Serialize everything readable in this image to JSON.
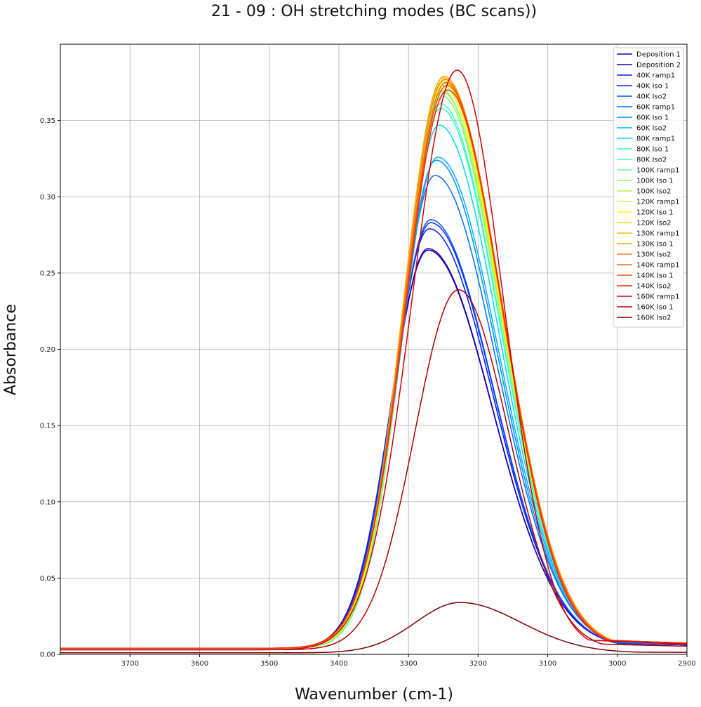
{
  "chart_data": {
    "type": "line",
    "title": "21 - 09 : OH stretching modes (BC scans))",
    "xlabel": "Wavenumber (cm-1)",
    "ylabel": "Absorbance",
    "xlim": [
      3800,
      2900
    ],
    "ylim": [
      0,
      0.4
    ],
    "x_reversed": true,
    "grid": true,
    "legend_position": "top-right",
    "x_ticks": [
      3700,
      3600,
      3500,
      3400,
      3300,
      3200,
      3100,
      3000,
      2900
    ],
    "y_ticks": [
      0.0,
      0.05,
      0.1,
      0.15,
      0.2,
      0.25,
      0.3,
      0.35
    ],
    "series": [
      {
        "name": "Deposition 1",
        "color": "#1a00a8",
        "peak_x": 3272,
        "peak": 0.261,
        "left_scale": 1.0,
        "right_scale": 1.0,
        "shoulder": 0.0,
        "baseline": 0.004
      },
      {
        "name": "Deposition 2",
        "color": "#1800b4",
        "peak_x": 3272,
        "peak": 0.262,
        "left_scale": 1.0,
        "right_scale": 1.0,
        "shoulder": 0.0,
        "baseline": 0.004
      },
      {
        "name": "40K ramp1",
        "color": "#0019ff",
        "peak_x": 3270,
        "peak": 0.275,
        "left_scale": 0.99,
        "right_scale": 1.0,
        "shoulder": 0.0,
        "baseline": 0.004
      },
      {
        "name": "40K Iso 1",
        "color": "#0030ff",
        "peak_x": 3268,
        "peak": 0.279,
        "left_scale": 0.98,
        "right_scale": 1.0,
        "shoulder": 0.0,
        "baseline": 0.004
      },
      {
        "name": "40K Iso2",
        "color": "#0050ff",
        "peak_x": 3268,
        "peak": 0.281,
        "left_scale": 0.98,
        "right_scale": 1.0,
        "shoulder": 0.0,
        "baseline": 0.004
      },
      {
        "name": "60K ramp1",
        "color": "#0070ff",
        "peak_x": 3262,
        "peak": 0.31,
        "left_scale": 0.96,
        "right_scale": 1.0,
        "shoulder": 0.0,
        "baseline": 0.004
      },
      {
        "name": "60K Iso 1",
        "color": "#0090ff",
        "peak_x": 3260,
        "peak": 0.32,
        "left_scale": 0.95,
        "right_scale": 1.0,
        "shoulder": 0.0,
        "baseline": 0.004
      },
      {
        "name": "60K Iso2",
        "color": "#00b0ff",
        "peak_x": 3258,
        "peak": 0.322,
        "left_scale": 0.95,
        "right_scale": 1.0,
        "shoulder": 0.0,
        "baseline": 0.004
      },
      {
        "name": "80K ramp1",
        "color": "#00d4ff",
        "peak_x": 3256,
        "peak": 0.343,
        "left_scale": 0.93,
        "right_scale": 1.0,
        "shoulder": 0.0,
        "baseline": 0.004
      },
      {
        "name": "80K Iso 1",
        "color": "#29ffce",
        "peak_x": 3254,
        "peak": 0.354,
        "left_scale": 0.92,
        "right_scale": 1.01,
        "shoulder": 0.0,
        "baseline": 0.004
      },
      {
        "name": "80K Iso2",
        "color": "#49ffad",
        "peak_x": 3254,
        "peak": 0.357,
        "left_scale": 0.92,
        "right_scale": 1.01,
        "shoulder": 0.0,
        "baseline": 0.004
      },
      {
        "name": "100K ramp1",
        "color": "#6dff8a",
        "peak_x": 3252,
        "peak": 0.362,
        "left_scale": 0.91,
        "right_scale": 1.02,
        "shoulder": 0.0,
        "baseline": 0.004
      },
      {
        "name": "100K Iso 1",
        "color": "#8dff6a",
        "peak_x": 3252,
        "peak": 0.365,
        "left_scale": 0.91,
        "right_scale": 1.03,
        "shoulder": 0.0,
        "baseline": 0.004
      },
      {
        "name": "100K Iso2",
        "color": "#adff49",
        "peak_x": 3252,
        "peak": 0.366,
        "left_scale": 0.91,
        "right_scale": 1.04,
        "shoulder": 0.0,
        "baseline": 0.004
      },
      {
        "name": "120K ramp1",
        "color": "#ceff29",
        "peak_x": 3251,
        "peak": 0.369,
        "left_scale": 0.9,
        "right_scale": 1.05,
        "shoulder": 0.0,
        "baseline": 0.004
      },
      {
        "name": "120K Iso 1",
        "color": "#f1fc06",
        "peak_x": 3250,
        "peak": 0.371,
        "left_scale": 0.9,
        "right_scale": 1.06,
        "shoulder": 0.0,
        "baseline": 0.004
      },
      {
        "name": "120K Iso2",
        "color": "#ffe200",
        "peak_x": 3250,
        "peak": 0.372,
        "left_scale": 0.9,
        "right_scale": 1.07,
        "shoulder": 0.0,
        "baseline": 0.004
      },
      {
        "name": "130K ramp1",
        "color": "#ffc400",
        "peak_x": 3250,
        "peak": 0.374,
        "left_scale": 0.9,
        "right_scale": 1.08,
        "shoulder": 0.0,
        "baseline": 0.004
      },
      {
        "name": "130K Iso 1",
        "color": "#ffa700",
        "peak_x": 3249,
        "peak": 0.375,
        "left_scale": 0.9,
        "right_scale": 1.09,
        "shoulder": 0.0,
        "baseline": 0.004
      },
      {
        "name": "130K Iso2",
        "color": "#f08a20",
        "peak_x": 3248,
        "peak": 0.373,
        "left_scale": 0.89,
        "right_scale": 1.1,
        "shoulder": 0.0,
        "baseline": 0.004
      },
      {
        "name": "140K ramp1",
        "color": "#ff6a00",
        "peak_x": 3246,
        "peak": 0.371,
        "left_scale": 0.88,
        "right_scale": 1.12,
        "shoulder": 0.0,
        "baseline": 0.004
      },
      {
        "name": "140K Iso 1",
        "color": "#ff4d00",
        "peak_x": 3245,
        "peak": 0.369,
        "left_scale": 0.87,
        "right_scale": 1.13,
        "shoulder": 0.0,
        "baseline": 0.004
      },
      {
        "name": "140K Iso2",
        "color": "#f22a00",
        "peak_x": 3244,
        "peak": 0.366,
        "left_scale": 0.86,
        "right_scale": 1.14,
        "shoulder": 0.0,
        "baseline": 0.004
      },
      {
        "name": "160K ramp1",
        "color": "#d40000",
        "peak_x": 3230,
        "peak": 0.38,
        "left_scale": 0.72,
        "right_scale": 1.22,
        "shoulder": 0.04,
        "baseline": 0.003
      },
      {
        "name": "160K Iso 1",
        "color": "#b20000",
        "peak_x": 3228,
        "peak": 0.236,
        "left_scale": 0.78,
        "right_scale": 1.18,
        "shoulder": 0.05,
        "baseline": 0.003
      },
      {
        "name": "160K Iso2",
        "color": "#800000",
        "peak_x": 3226,
        "peak": 0.033,
        "left_scale": 0.95,
        "right_scale": 1.2,
        "shoulder": 0.012,
        "baseline": 0.001
      }
    ]
  }
}
